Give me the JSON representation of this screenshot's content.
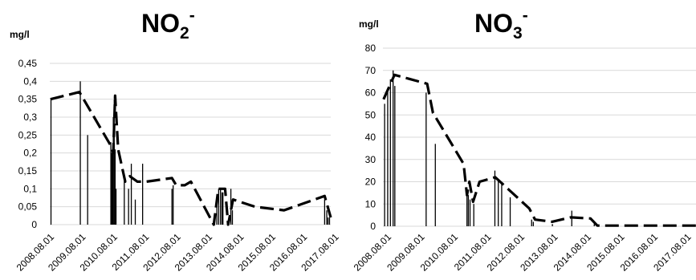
{
  "chart_data": [
    {
      "type": "bar+line",
      "title": "NO",
      "title_subscript": "2",
      "title_superscript": "-",
      "unit": "mg/l",
      "ylim": [
        0,
        0.45
      ],
      "y_ticks": [
        "0",
        "0,05",
        "0,1",
        "0,15",
        "0,2",
        "0,25",
        "0,3",
        "0,35",
        "0,4",
        "0,45"
      ],
      "x_tick_labels": [
        "2008.08.01",
        "2009.08.01",
        "2010.08.01",
        "2011.08.01",
        "2012.08.01",
        "2013.08.01",
        "2014.08.01",
        "2015.08.01",
        "2016.08.01",
        "2017.08.01"
      ],
      "xlim": [
        2008.58,
        2017.78
      ],
      "grid": "horizontal",
      "series": [
        {
          "style": "vertical bars",
          "points": [
            [
              2008.62,
              0.35
            ],
            [
              2009.58,
              0.4
            ],
            [
              2009.82,
              0.25
            ],
            [
              2010.58,
              0.23
            ],
            [
              2010.61,
              0.2
            ],
            [
              2010.63,
              0.21
            ],
            [
              2010.66,
              0.3
            ],
            [
              2010.69,
              0.35
            ],
            [
              2010.72,
              0.21
            ],
            [
              2010.75,
              0.1
            ],
            [
              2011.02,
              0.13
            ],
            [
              2011.16,
              0.1
            ],
            [
              2011.25,
              0.17
            ],
            [
              2011.38,
              0.07
            ],
            [
              2011.62,
              0.17
            ],
            [
              2012.58,
              0.1
            ],
            [
              2012.62,
              0.11
            ],
            [
              2014.05,
              0.07
            ],
            [
              2014.11,
              0.1
            ],
            [
              2014.17,
              0.1
            ],
            [
              2014.22,
              0.09
            ],
            [
              2014.25,
              0.09
            ],
            [
              2014.51,
              0.1
            ],
            [
              2014.56,
              0.04
            ],
            [
              2017.58,
              0.07
            ],
            [
              2017.65,
              0.04
            ],
            [
              2017.69,
              0.02
            ],
            [
              2017.74,
              0.02
            ]
          ]
        },
        {
          "style": "dashed line",
          "points": [
            [
              2008.6,
              0.35
            ],
            [
              2009.55,
              0.37
            ],
            [
              2010.58,
              0.22
            ],
            [
              2010.66,
              0.2
            ],
            [
              2010.72,
              0.36
            ],
            [
              2010.82,
              0.21
            ],
            [
              2011.05,
              0.12
            ],
            [
              2011.2,
              0.135
            ],
            [
              2011.45,
              0.12
            ],
            [
              2011.75,
              0.12
            ],
            [
              2012.58,
              0.13
            ],
            [
              2012.72,
              0.11
            ],
            [
              2013.0,
              0.11
            ],
            [
              2013.2,
              0.12
            ],
            [
              2013.95,
              0.0
            ],
            [
              2014.1,
              0.1
            ],
            [
              2014.32,
              0.1
            ],
            [
              2014.42,
              0.0
            ],
            [
              2014.58,
              0.07
            ],
            [
              2015.3,
              0.05
            ],
            [
              2016.25,
              0.04
            ],
            [
              2017.58,
              0.08
            ],
            [
              2017.78,
              0.02
            ]
          ]
        }
      ]
    },
    {
      "type": "bar+line",
      "title": "NO",
      "title_subscript": "3",
      "title_superscript": "-",
      "unit": "mg/l",
      "ylim": [
        0,
        80
      ],
      "y_ticks": [
        "0",
        "10",
        "20",
        "30",
        "40",
        "50",
        "60",
        "70",
        "80"
      ],
      "x_tick_labels": [
        "2008.08.01",
        "2009.08.01",
        "2010.08.01",
        "2011.08.01",
        "2012.08.01",
        "2013.08.01",
        "2014.08.01",
        "2015.08.01",
        "2016.08.01",
        "2017.08.01"
      ],
      "xlim": [
        2008.58,
        2017.78
      ],
      "grid": "horizontal",
      "series": [
        {
          "style": "vertical bars",
          "points": [
            [
              2008.63,
              55
            ],
            [
              2008.72,
              60
            ],
            [
              2008.8,
              66
            ],
            [
              2008.88,
              70
            ],
            [
              2008.93,
              63
            ],
            [
              2009.85,
              60
            ],
            [
              2010.12,
              37
            ],
            [
              2011.05,
              16
            ],
            [
              2011.09,
              14
            ],
            [
              2011.14,
              12
            ],
            [
              2011.25,
              10
            ],
            [
              2011.87,
              25
            ],
            [
              2011.97,
              21
            ],
            [
              2012.07,
              20
            ],
            [
              2012.32,
              13
            ],
            [
              2012.95,
              3
            ],
            [
              2013.0,
              2
            ],
            [
              2013.56,
              1
            ],
            [
              2014.13,
              7
            ],
            [
              2014.79,
              1
            ]
          ]
        },
        {
          "style": "dashed line",
          "points": [
            [
              2008.6,
              57
            ],
            [
              2008.92,
              68
            ],
            [
              2009.88,
              64
            ],
            [
              2010.05,
              51
            ],
            [
              2010.95,
              28
            ],
            [
              2011.05,
              14
            ],
            [
              2011.12,
              20
            ],
            [
              2011.23,
              11
            ],
            [
              2011.42,
              20
            ],
            [
              2011.88,
              22
            ],
            [
              2012.88,
              8
            ],
            [
              2013.05,
              3
            ],
            [
              2013.55,
              2
            ],
            [
              2014.1,
              4
            ],
            [
              2014.68,
              3.5
            ],
            [
              2014.88,
              0.3
            ],
            [
              2015.45,
              0.3
            ],
            [
              2017.78,
              0.3
            ]
          ]
        }
      ]
    }
  ]
}
